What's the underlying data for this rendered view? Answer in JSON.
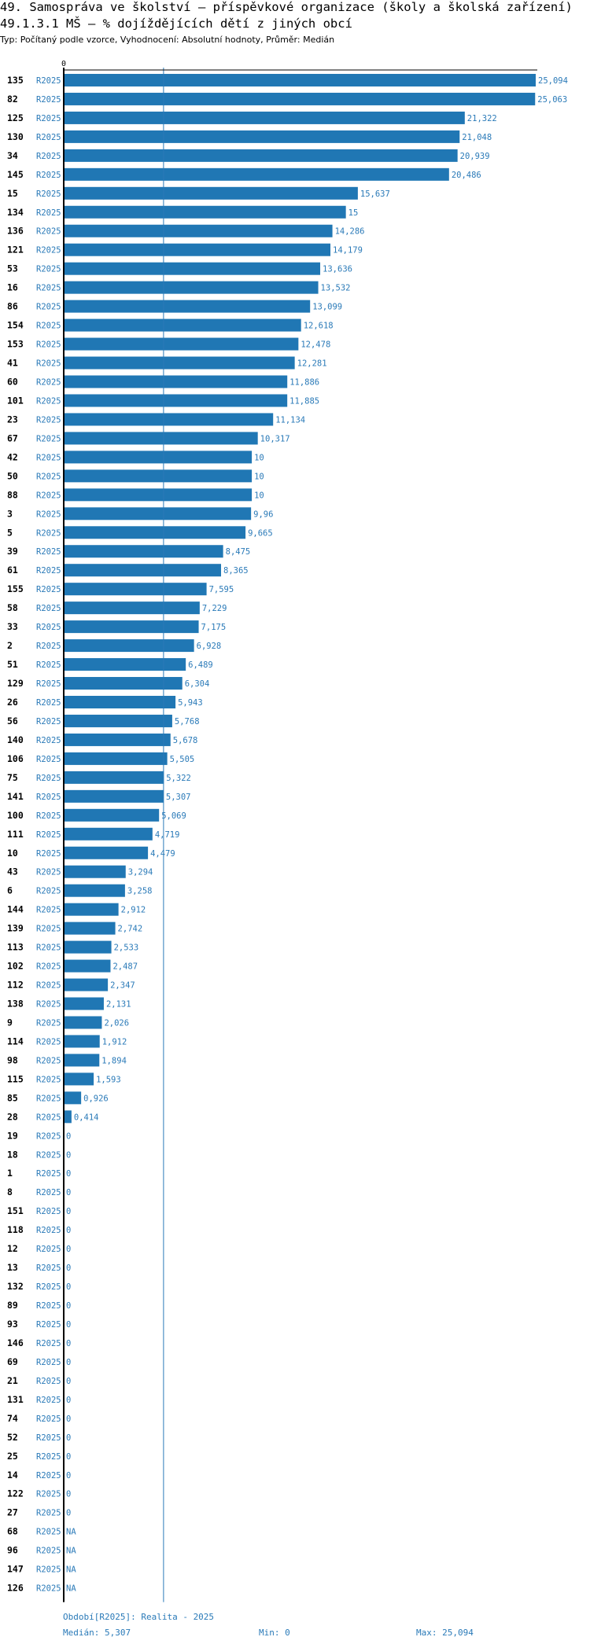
{
  "header": {
    "title": "49. Samospráva ve školství – příspěvkové organizace (školy a školská zařízení)",
    "subtitle": "49.1.3.1 MŠ – % dojíždějících dětí z jiných obcí",
    "meta": "Typ: Počítaný podle vzorce, Vyhodnocení: Absolutní hodnoty, Průměr: Medián"
  },
  "colors": {
    "bar": "#2077b4",
    "label": "#2a7ab8",
    "axis": "#000000",
    "median_line": "#2a7ab8"
  },
  "chart_data": {
    "type": "bar",
    "orientation": "horizontal",
    "axis_zero_label": "0",
    "xlim": [
      0,
      25.094
    ],
    "series_tag": "R2025",
    "median": 5.307,
    "categories": [
      "135",
      "82",
      "125",
      "130",
      "34",
      "145",
      "15",
      "134",
      "136",
      "121",
      "53",
      "16",
      "86",
      "154",
      "153",
      "41",
      "60",
      "101",
      "23",
      "67",
      "42",
      "50",
      "88",
      "3",
      "5",
      "39",
      "61",
      "155",
      "58",
      "33",
      "2",
      "51",
      "129",
      "26",
      "56",
      "140",
      "106",
      "75",
      "141",
      "100",
      "111",
      "10",
      "43",
      "6",
      "144",
      "139",
      "113",
      "102",
      "112",
      "138",
      "9",
      "114",
      "98",
      "115",
      "85",
      "28",
      "19",
      "18",
      "1",
      "8",
      "151",
      "118",
      "12",
      "13",
      "132",
      "89",
      "93",
      "146",
      "69",
      "21",
      "131",
      "74",
      "52",
      "25",
      "14",
      "122",
      "27",
      "68",
      "96",
      "147",
      "126"
    ],
    "values": [
      25.094,
      25.063,
      21.322,
      21.048,
      20.939,
      20.486,
      15.637,
      15,
      14.286,
      14.179,
      13.636,
      13.532,
      13.099,
      12.618,
      12.478,
      12.281,
      11.886,
      11.885,
      11.134,
      10.317,
      10,
      10,
      10,
      9.96,
      9.665,
      8.475,
      8.365,
      7.595,
      7.229,
      7.175,
      6.928,
      6.489,
      6.304,
      5.943,
      5.768,
      5.678,
      5.505,
      5.322,
      5.307,
      5.069,
      4.719,
      4.479,
      3.294,
      3.258,
      2.912,
      2.742,
      2.533,
      2.487,
      2.347,
      2.131,
      2.026,
      1.912,
      1.894,
      1.593,
      0.926,
      0.414,
      0,
      0,
      0,
      0,
      0,
      0,
      0,
      0,
      0,
      0,
      0,
      0,
      0,
      0,
      0,
      0,
      0,
      0,
      0,
      0,
      0,
      null,
      null,
      null,
      null
    ],
    "value_labels": [
      "25,094",
      "25,063",
      "21,322",
      "21,048",
      "20,939",
      "20,486",
      "15,637",
      "15",
      "14,286",
      "14,179",
      "13,636",
      "13,532",
      "13,099",
      "12,618",
      "12,478",
      "12,281",
      "11,886",
      "11,885",
      "11,134",
      "10,317",
      "10",
      "10",
      "10",
      "9,96",
      "9,665",
      "8,475",
      "8,365",
      "7,595",
      "7,229",
      "7,175",
      "6,928",
      "6,489",
      "6,304",
      "5,943",
      "5,768",
      "5,678",
      "5,505",
      "5,322",
      "5,307",
      "5,069",
      "4,719",
      "4,479",
      "3,294",
      "3,258",
      "2,912",
      "2,742",
      "2,533",
      "2,487",
      "2,347",
      "2,131",
      "2,026",
      "1,912",
      "1,894",
      "1,593",
      "0,926",
      "0,414",
      "0",
      "0",
      "0",
      "0",
      "0",
      "0",
      "0",
      "0",
      "0",
      "0",
      "0",
      "0",
      "0",
      "0",
      "0",
      "0",
      "0",
      "0",
      "0",
      "0",
      "0",
      "NA",
      "NA",
      "NA",
      "NA"
    ]
  },
  "footer": {
    "period": "Období[R2025]: Realita - 2025",
    "median": "Medián: 5,307",
    "min": "Min: 0",
    "max": "Max: 25,094"
  }
}
